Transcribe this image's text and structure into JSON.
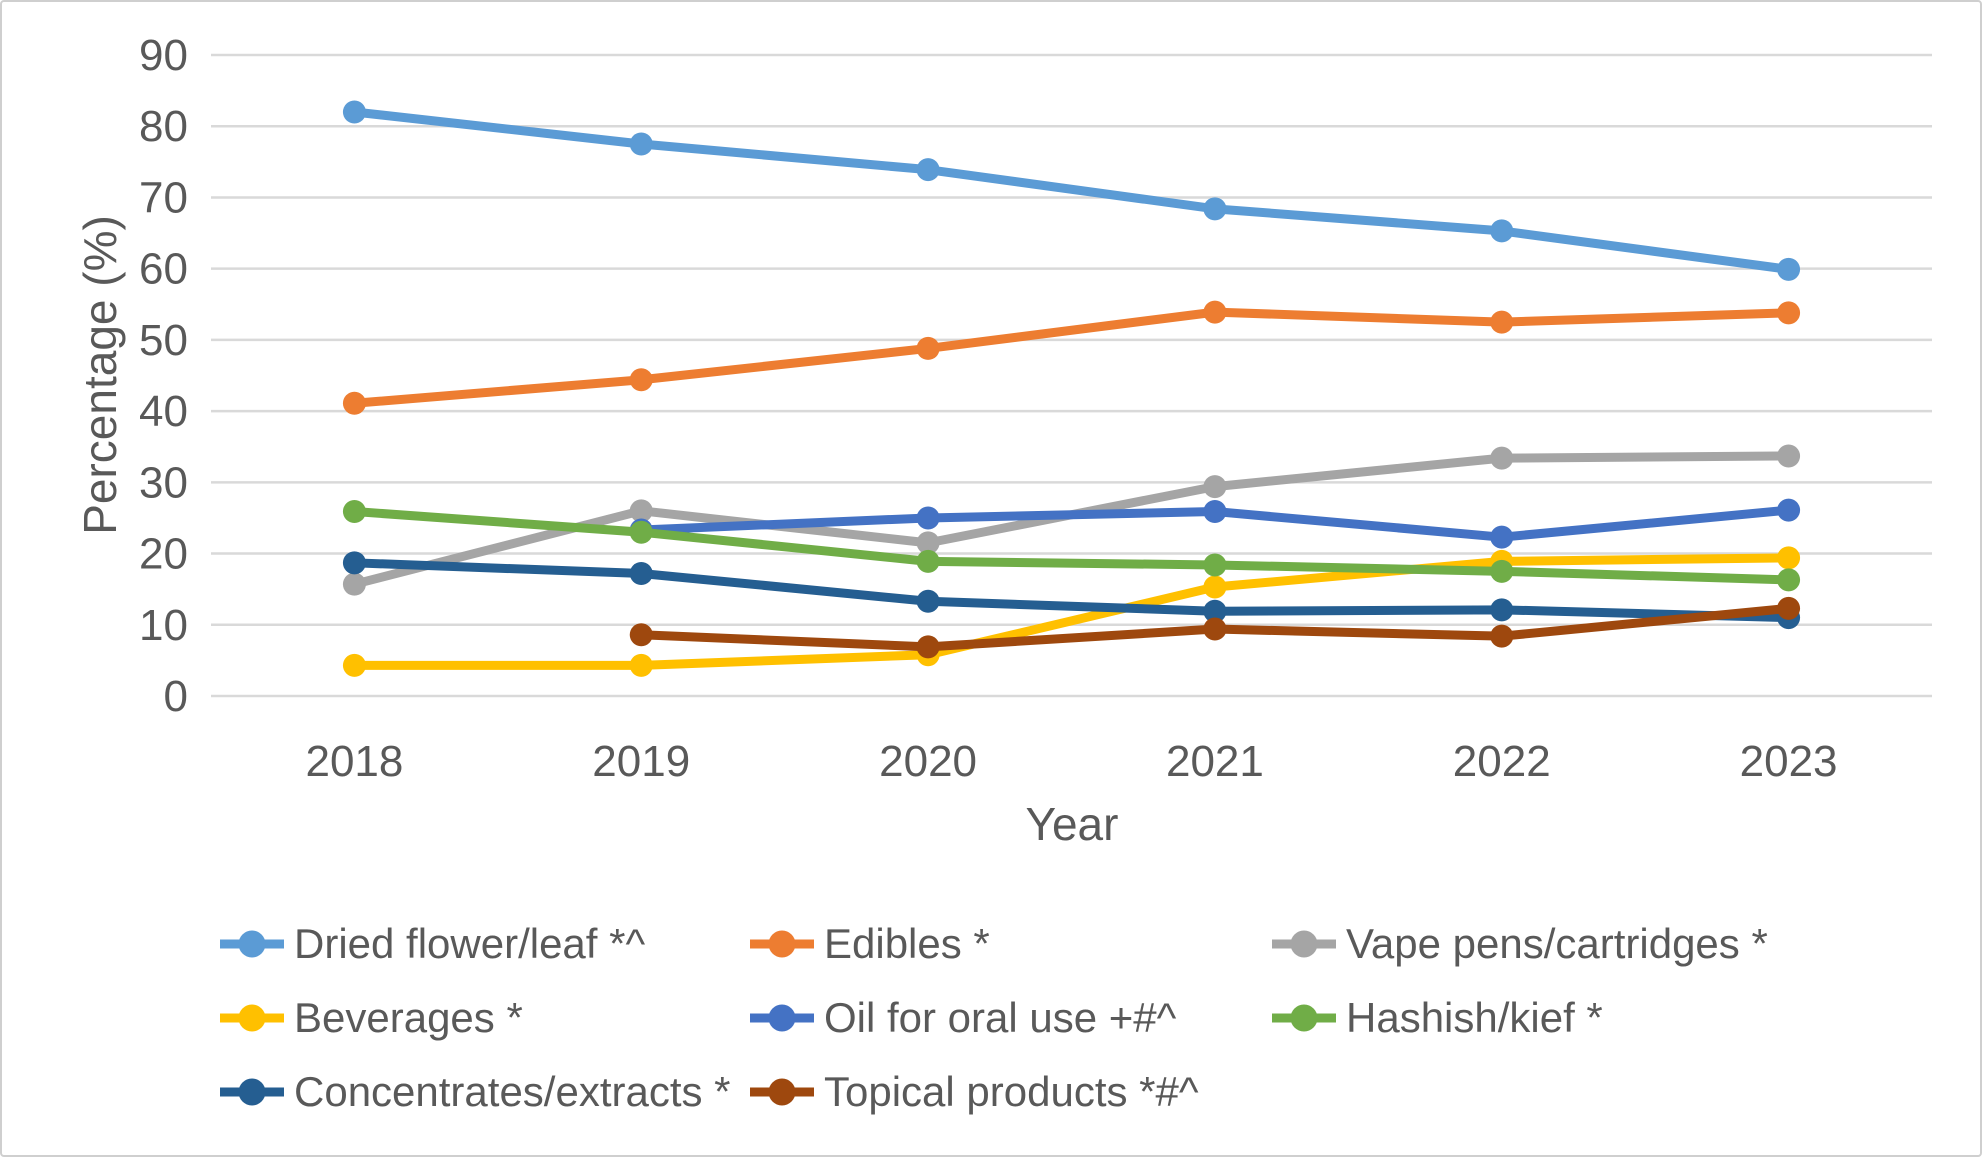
{
  "theme": {
    "background": "#ffffff",
    "border_color": "#cfcfcf",
    "gridline_color": "#d9d9d9",
    "text_color": "#595959"
  },
  "axes": {
    "y_title": "Percentage (%)",
    "x_title": "Year",
    "y_ticks": [
      0,
      10,
      20,
      30,
      40,
      50,
      60,
      70,
      80,
      90
    ]
  },
  "chart_data": {
    "type": "line",
    "title": "",
    "xlabel": "Year",
    "ylabel": "Percentage (%)",
    "ylim": [
      0,
      90
    ],
    "grid": true,
    "legend_position": "bottom",
    "categories": [
      "2018",
      "2019",
      "2020",
      "2021",
      "2022",
      "2023"
    ],
    "series": [
      {
        "name": "Dried flower/leaf *^",
        "color": "#5B9BD5",
        "values": [
          82.0,
          77.5,
          73.9,
          68.4,
          65.3,
          59.9
        ]
      },
      {
        "name": "Edibles *",
        "color": "#ED7D31",
        "values": [
          41.1,
          44.4,
          48.8,
          53.9,
          52.5,
          53.8
        ]
      },
      {
        "name": "Vape pens/cartridges *",
        "color": "#A5A5A5",
        "values": [
          15.7,
          26.0,
          21.5,
          29.4,
          33.4,
          33.7
        ]
      },
      {
        "name": "Beverages *",
        "color": "#FFC000",
        "values": [
          4.3,
          4.3,
          5.8,
          15.3,
          18.9,
          19.4
        ]
      },
      {
        "name": "Oil for oral use +#^",
        "color": "#4472C4",
        "values": [
          null,
          23.3,
          25.0,
          25.9,
          22.3,
          26.1
        ]
      },
      {
        "name": "Hashish/kief *",
        "color": "#70AD47",
        "values": [
          25.9,
          23.0,
          18.9,
          18.4,
          17.5,
          16.3
        ]
      },
      {
        "name": "Concentrates/extracts *",
        "color": "#255E91",
        "values": [
          18.7,
          17.2,
          13.3,
          11.9,
          12.1,
          11.0
        ]
      },
      {
        "name": "Topical products *#^",
        "color": "#9E480E",
        "values": [
          null,
          8.6,
          6.9,
          9.4,
          8.4,
          12.3
        ]
      }
    ]
  }
}
